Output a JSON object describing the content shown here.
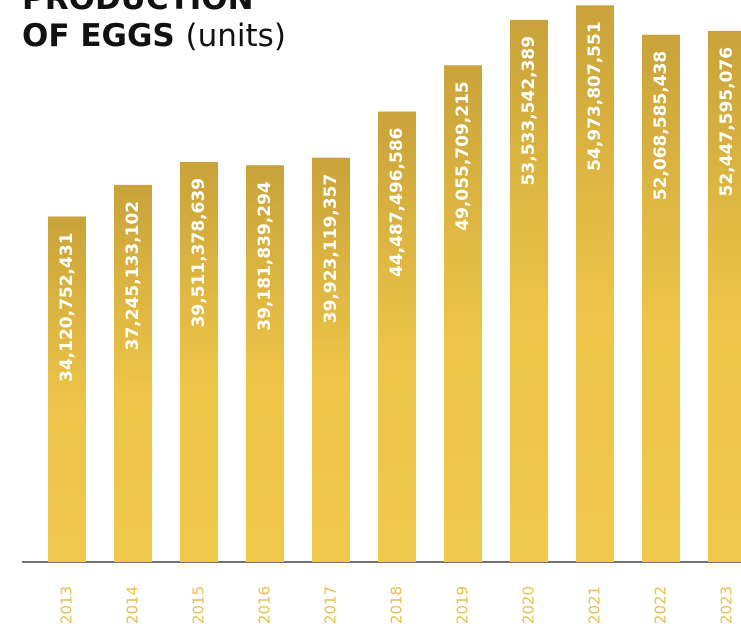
{
  "chart_data": {
    "type": "bar",
    "title_lines": [
      "PRODUCTION",
      "OF EGGS"
    ],
    "unit": "(units)",
    "categories": [
      "2013",
      "2014",
      "2015",
      "2016",
      "2017",
      "2018",
      "2019",
      "2020",
      "2021",
      "2022",
      "2023"
    ],
    "values": [
      34120752431,
      37245133102,
      39511378639,
      39181839294,
      39923119357,
      44487496586,
      49055709215,
      53533542389,
      54973807551,
      52068585438,
      52447595076
    ],
    "value_labels": [
      "34,120,752,431",
      "37,245,133,102",
      "39,511,378,639",
      "39,181,839,294",
      "39,923,119,357",
      "44,487,496,586",
      "49,055,709,215",
      "53,533,542,389",
      "54,973,807,551",
      "52,068,585,438",
      "52,447,595,076"
    ],
    "color": "#eec548",
    "ylim": [
      0,
      55500000000
    ]
  }
}
